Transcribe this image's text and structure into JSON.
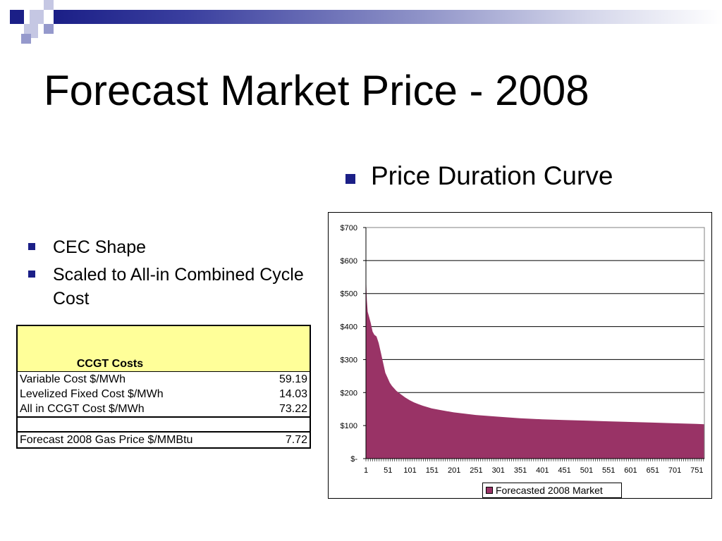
{
  "slide": {
    "title": "Forecast Market Price - 2008",
    "right_heading": "Price Duration Curve",
    "left_bullets": [
      "CEC Shape",
      "Scaled to All-in Combined Cycle Cost"
    ]
  },
  "ccgt_table": {
    "header": "CCGT Costs",
    "header_color": "#ffff99",
    "rows": [
      {
        "label": "Variable Cost $/MWh",
        "value": "59.19"
      },
      {
        "label": "Levelized Fixed Cost $/MWh",
        "value": "14.03"
      },
      {
        "label": "All in CCGT Cost $/MWh",
        "value": "73.22"
      },
      {
        "label": "",
        "value": ""
      },
      {
        "label": "Forecast 2008 Gas Price $/MMBtu",
        "value": "7.72"
      }
    ]
  },
  "colors": {
    "accent": "#1b1f87",
    "series_fill": "#993366"
  },
  "chart_data": {
    "type": "area",
    "title": "",
    "xlabel": "",
    "ylabel": "",
    "ylim": [
      0,
      700
    ],
    "xlim": [
      1,
      768
    ],
    "y_ticks": [
      0,
      100,
      200,
      300,
      400,
      500,
      600,
      700
    ],
    "y_tick_labels": [
      "$-",
      "$100",
      "$200",
      "$300",
      "$400",
      "$500",
      "$600",
      "$700"
    ],
    "x_tick_labels": [
      "1",
      "51",
      "101",
      "151",
      "201",
      "251",
      "301",
      "351",
      "401",
      "451",
      "501",
      "551",
      "601",
      "651",
      "701",
      "751"
    ],
    "grid": true,
    "legend_position": "bottom",
    "series": [
      {
        "name": "Forecasted 2008 Market",
        "color": "#993366",
        "x": [
          1,
          2,
          3,
          5,
          8,
          12,
          16,
          20,
          25,
          30,
          35,
          40,
          45,
          50,
          55,
          60,
          70,
          80,
          90,
          100,
          110,
          120,
          130,
          140,
          150,
          170,
          200,
          250,
          300,
          350,
          400,
          450,
          500,
          550,
          600,
          650,
          700,
          750,
          768
        ],
        "y": [
          575,
          520,
          480,
          445,
          430,
          410,
          385,
          375,
          370,
          350,
          320,
          290,
          260,
          245,
          230,
          220,
          205,
          195,
          185,
          177,
          170,
          165,
          160,
          156,
          152,
          147,
          140,
          132,
          127,
          122,
          119,
          117,
          115,
          113,
          111,
          109,
          107,
          105,
          104
        ]
      }
    ]
  }
}
